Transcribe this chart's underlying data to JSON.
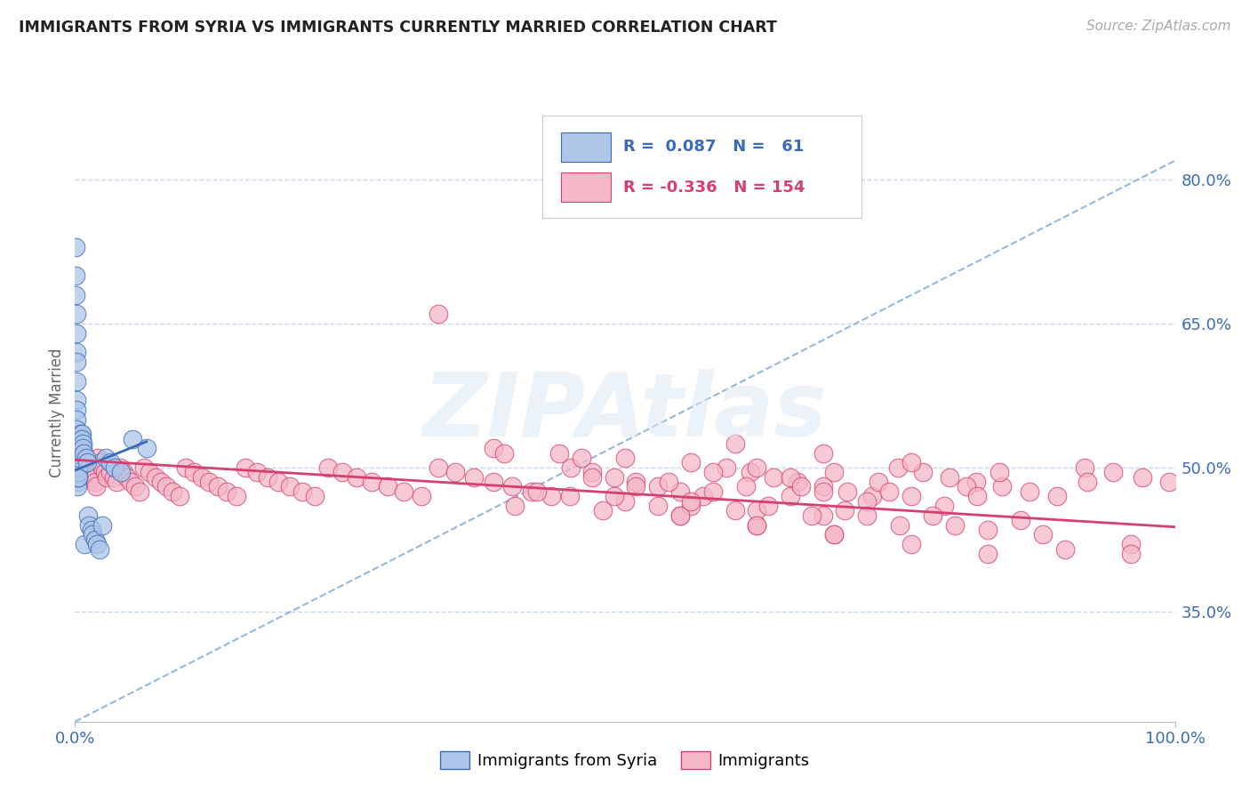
{
  "title": "IMMIGRANTS FROM SYRIA VS IMMIGRANTS CURRENTLY MARRIED CORRELATION CHART",
  "source_text": "Source: ZipAtlas.com",
  "ylabel": "Currently Married",
  "blue_color": "#aec6e8",
  "pink_color": "#f4b8c8",
  "blue_line_color": "#3a6bba",
  "pink_line_color": "#d64070",
  "dashed_line_color": "#8ab0d8",
  "right_ytick_labels": [
    "80.0%",
    "65.0%",
    "50.0%",
    "35.0%"
  ],
  "right_ytick_values": [
    0.8,
    0.65,
    0.5,
    0.35
  ],
  "right_ytick_color": "#3a6bba",
  "xlim": [
    0.0,
    1.0
  ],
  "ylim": [
    0.235,
    0.88
  ],
  "blue_scatter_x": [
    0.0005,
    0.0005,
    0.0008,
    0.001,
    0.001,
    0.001,
    0.001,
    0.001,
    0.001,
    0.0012,
    0.0012,
    0.0013,
    0.0015,
    0.0015,
    0.0015,
    0.0015,
    0.0015,
    0.0018,
    0.002,
    0.002,
    0.002,
    0.002,
    0.002,
    0.002,
    0.0025,
    0.0025,
    0.003,
    0.003,
    0.003,
    0.003,
    0.003,
    0.003,
    0.004,
    0.004,
    0.004,
    0.004,
    0.005,
    0.005,
    0.005,
    0.006,
    0.006,
    0.007,
    0.007,
    0.008,
    0.009,
    0.01,
    0.011,
    0.012,
    0.013,
    0.015,
    0.016,
    0.018,
    0.02,
    0.022,
    0.025,
    0.028,
    0.032,
    0.036,
    0.042,
    0.052,
    0.065
  ],
  "blue_scatter_y": [
    0.73,
    0.7,
    0.68,
    0.66,
    0.64,
    0.62,
    0.61,
    0.59,
    0.57,
    0.56,
    0.55,
    0.54,
    0.53,
    0.525,
    0.52,
    0.515,
    0.51,
    0.505,
    0.5,
    0.5,
    0.495,
    0.49,
    0.485,
    0.48,
    0.495,
    0.49,
    0.515,
    0.51,
    0.505,
    0.5,
    0.495,
    0.49,
    0.525,
    0.52,
    0.515,
    0.51,
    0.535,
    0.53,
    0.525,
    0.535,
    0.53,
    0.525,
    0.52,
    0.515,
    0.42,
    0.51,
    0.505,
    0.45,
    0.44,
    0.435,
    0.43,
    0.425,
    0.42,
    0.415,
    0.44,
    0.51,
    0.505,
    0.5,
    0.495,
    0.53,
    0.52
  ],
  "pink_scatter_x": [
    0.003,
    0.004,
    0.005,
    0.006,
    0.007,
    0.008,
    0.01,
    0.011,
    0.012,
    0.013,
    0.015,
    0.016,
    0.018,
    0.019,
    0.021,
    0.023,
    0.025,
    0.027,
    0.029,
    0.032,
    0.035,
    0.038,
    0.041,
    0.044,
    0.047,
    0.051,
    0.055,
    0.059,
    0.063,
    0.068,
    0.073,
    0.078,
    0.083,
    0.089,
    0.095,
    0.101,
    0.108,
    0.115,
    0.122,
    0.13,
    0.138,
    0.147,
    0.155,
    0.165,
    0.175,
    0.185,
    0.195,
    0.207,
    0.218,
    0.23,
    0.243,
    0.256,
    0.27,
    0.284,
    0.299,
    0.315,
    0.33,
    0.346,
    0.363,
    0.38,
    0.397,
    0.415,
    0.433,
    0.451,
    0.47,
    0.49,
    0.51,
    0.53,
    0.55,
    0.571,
    0.592,
    0.614,
    0.635,
    0.657,
    0.68,
    0.702,
    0.725,
    0.748,
    0.771,
    0.795,
    0.819,
    0.843,
    0.868,
    0.893,
    0.918,
    0.944,
    0.97,
    0.995,
    0.6,
    0.68,
    0.76,
    0.84,
    0.92,
    0.55,
    0.62,
    0.69,
    0.76,
    0.83,
    0.45,
    0.5,
    0.56,
    0.62,
    0.68,
    0.51,
    0.58,
    0.65,
    0.72,
    0.79,
    0.4,
    0.48,
    0.55,
    0.62,
    0.69,
    0.72,
    0.8,
    0.88,
    0.96,
    0.38,
    0.44,
    0.5,
    0.56,
    0.62,
    0.69,
    0.58,
    0.65,
    0.73,
    0.81,
    0.42,
    0.49,
    0.56,
    0.63,
    0.7,
    0.78,
    0.86,
    0.9,
    0.96,
    0.66,
    0.74,
    0.82,
    0.53,
    0.6,
    0.67,
    0.75,
    0.83,
    0.47,
    0.54,
    0.61,
    0.68,
    0.76,
    0.33,
    0.39,
    0.46
  ],
  "pink_scatter_y": [
    0.535,
    0.53,
    0.525,
    0.52,
    0.515,
    0.51,
    0.505,
    0.5,
    0.495,
    0.49,
    0.495,
    0.49,
    0.485,
    0.48,
    0.51,
    0.505,
    0.5,
    0.495,
    0.49,
    0.495,
    0.49,
    0.485,
    0.5,
    0.495,
    0.49,
    0.485,
    0.48,
    0.475,
    0.5,
    0.495,
    0.49,
    0.485,
    0.48,
    0.475,
    0.47,
    0.5,
    0.495,
    0.49,
    0.485,
    0.48,
    0.475,
    0.47,
    0.5,
    0.495,
    0.49,
    0.485,
    0.48,
    0.475,
    0.47,
    0.5,
    0.495,
    0.49,
    0.485,
    0.48,
    0.475,
    0.47,
    0.5,
    0.495,
    0.49,
    0.485,
    0.48,
    0.475,
    0.47,
    0.5,
    0.495,
    0.49,
    0.485,
    0.48,
    0.475,
    0.47,
    0.5,
    0.495,
    0.49,
    0.485,
    0.48,
    0.475,
    0.47,
    0.5,
    0.495,
    0.49,
    0.485,
    0.48,
    0.475,
    0.47,
    0.5,
    0.495,
    0.49,
    0.485,
    0.525,
    0.515,
    0.505,
    0.495,
    0.485,
    0.45,
    0.44,
    0.43,
    0.42,
    0.41,
    0.47,
    0.465,
    0.46,
    0.455,
    0.45,
    0.48,
    0.475,
    0.47,
    0.465,
    0.46,
    0.46,
    0.455,
    0.45,
    0.44,
    0.43,
    0.45,
    0.44,
    0.43,
    0.42,
    0.52,
    0.515,
    0.51,
    0.505,
    0.5,
    0.495,
    0.495,
    0.49,
    0.485,
    0.48,
    0.475,
    0.47,
    0.465,
    0.46,
    0.455,
    0.45,
    0.445,
    0.415,
    0.41,
    0.48,
    0.475,
    0.47,
    0.46,
    0.455,
    0.45,
    0.44,
    0.435,
    0.49,
    0.485,
    0.48,
    0.475,
    0.47,
    0.66,
    0.515,
    0.51
  ],
  "blue_trend_x": [
    0.0,
    0.065
  ],
  "blue_trend_y": [
    0.497,
    0.527
  ],
  "pink_trend_x": [
    0.0,
    1.0
  ],
  "pink_trend_y": [
    0.508,
    0.438
  ],
  "dashed_trend_x": [
    0.0,
    1.0
  ],
  "dashed_trend_y": [
    0.235,
    0.82
  ],
  "background_color": "#ffffff",
  "grid_color": "#c8d8e8",
  "watermark_text": "ZIPAtlas"
}
